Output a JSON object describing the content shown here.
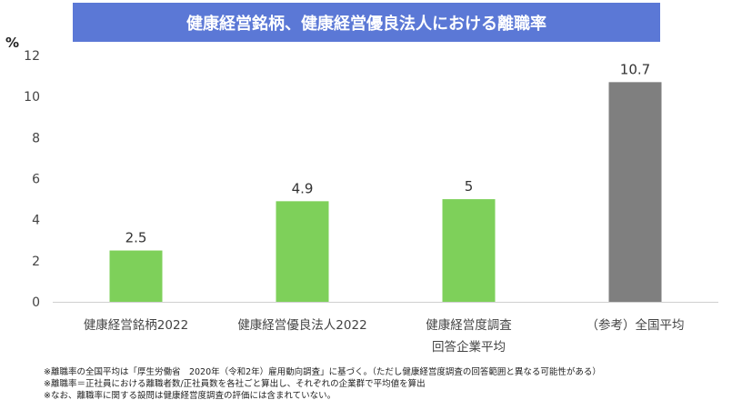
{
  "chart_data": {
    "type": "bar",
    "title": "健康経営銘柄、健康経営優良法人における離職率",
    "ylabel": "%",
    "ylim": [
      0,
      12
    ],
    "yticks": [
      0,
      2,
      4,
      6,
      8,
      10,
      12
    ],
    "grid": false,
    "legend": "none",
    "categories": [
      [
        "健康経営銘柄2022"
      ],
      [
        "健康経営優良法人2022"
      ],
      [
        "健康経営度調査",
        "回答企業平均"
      ],
      [
        "（参考）全国平均"
      ]
    ],
    "values": [
      2.5,
      4.9,
      5,
      10.7
    ],
    "value_labels": [
      "2.5",
      "4.9",
      "5",
      "10.7"
    ],
    "colors": [
      "#7ed05a",
      "#7ed05a",
      "#7ed05a",
      "#7f7f7f"
    ]
  },
  "notes": [
    "※離職率の全国平均は「厚生労働省　2020年（令和2年）雇用動向調査」に基づく。（ただし健康経営度調査の回答範囲と異なる可能性がある）",
    "※離職率＝正社員における離職者数/正社員数を各社ごと算出し、それぞれの企業群で平均値を算出",
    "※なお、離職率に関する設問は健康経営度調査の評価には含まれていない。"
  ]
}
